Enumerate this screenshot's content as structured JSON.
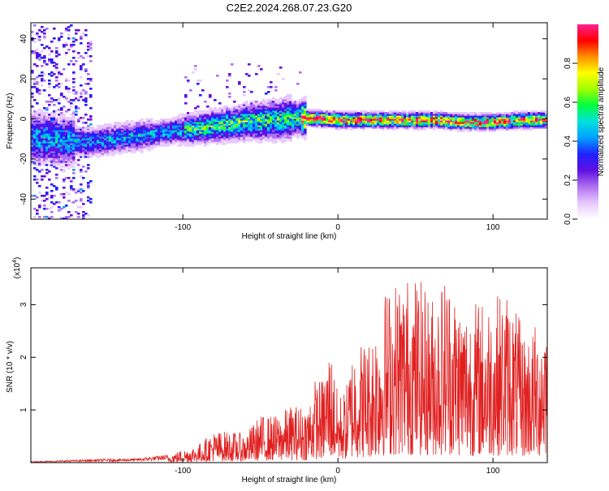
{
  "title": "C2E2.2024.268.07.23.G20",
  "chart_data": [
    {
      "type": "heatmap",
      "xlabel": "Height of straight line (km)",
      "ylabel": "Frequency (Hz)",
      "xlim": [
        -198,
        135
      ],
      "ylim": [
        -50,
        48
      ],
      "xticks": [
        -100,
        0,
        100
      ],
      "xtick_labels": [
        "-100",
        "0",
        "100"
      ],
      "yticks": [
        -40,
        -20,
        0,
        20,
        40
      ],
      "ytick_labels": [
        "-40",
        "-20",
        "0",
        "20",
        "40"
      ],
      "colorbar": {
        "label": "Normalized spectral amplitude",
        "range": [
          0,
          1
        ],
        "ticks": [
          0.0,
          0.2,
          0.4,
          0.6,
          0.8
        ],
        "tick_labels": [
          "0.0",
          "0.2",
          "0.4",
          "0.6",
          "0.8"
        ],
        "colors": [
          "#ffffff",
          "#e8c8ff",
          "#b070f0",
          "#6010e0",
          "#2020ff",
          "#00a0ff",
          "#00e0e0",
          "#00ff40",
          "#a0ff00",
          "#ffff00",
          "#ff9000",
          "#ff0000",
          "#ff2090"
        ]
      },
      "centerline": {
        "x": [
          -198,
          -180,
          -160,
          -140,
          -120,
          -100,
          -80,
          -60,
          -40,
          -28,
          -24,
          -10,
          0,
          20,
          40,
          60,
          80,
          100,
          120,
          135
        ],
        "y": [
          -9,
          -10,
          -11,
          -9,
          -7,
          -5,
          -3,
          -1,
          0,
          1,
          1,
          0.5,
          0,
          0,
          0,
          0,
          -1,
          -1,
          0,
          0
        ]
      },
      "grid": false
    },
    {
      "type": "line",
      "xlabel": "Height of straight line (km)",
      "ylabel": "SNR (10 * v/v)",
      "multiplier": "(x10",
      "multiplier_exp": "4",
      "multiplier_close": ")",
      "xlim": [
        -198,
        135
      ],
      "ylim": [
        0,
        3.7
      ],
      "xticks": [
        -100,
        0,
        100
      ],
      "xtick_labels": [
        "-100",
        "0",
        "100"
      ],
      "yticks": [
        1,
        2,
        3
      ],
      "ytick_labels": [
        "1",
        "2",
        "3"
      ],
      "line_color": "#e02020",
      "envelope": {
        "x": [
          -198,
          -170,
          -150,
          -130,
          -110,
          -90,
          -80,
          -70,
          -60,
          -50,
          -40,
          -30,
          -20,
          -15,
          -10,
          -5,
          0,
          5,
          10,
          20,
          30,
          40,
          50,
          60,
          70,
          80,
          90,
          100,
          110,
          120,
          130,
          135
        ],
        "y": [
          0.02,
          0.05,
          0.07,
          0.08,
          0.15,
          0.35,
          0.6,
          0.6,
          0.55,
          0.9,
          0.9,
          1.1,
          1.1,
          1.6,
          1.6,
          2.3,
          1.3,
          1.4,
          2.3,
          2.4,
          3.3,
          3.6,
          3.6,
          3.2,
          3.7,
          3.1,
          3.1,
          3.2,
          3.3,
          2.5,
          2.7,
          3.4
        ]
      },
      "grid": false
    }
  ]
}
